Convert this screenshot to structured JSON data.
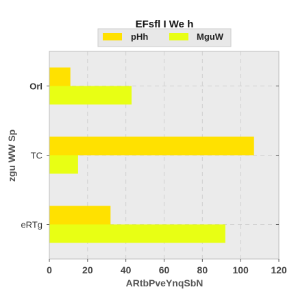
{
  "chart_data": {
    "type": "bar",
    "orientation": "horizontal",
    "title": "EFsfl I We h",
    "xlabel": "ARtbPveYnqSbN",
    "ylabel": "zgu WW Sp",
    "categories": [
      "Orl",
      "TC",
      "eRTg"
    ],
    "series": [
      {
        "name": "pHh",
        "values": [
          11,
          107,
          32
        ],
        "color": "#ffe100"
      },
      {
        "name": "MguW",
        "values": [
          43,
          15,
          92
        ],
        "color": "#e8ff14"
      }
    ],
    "xlim": [
      0,
      120
    ],
    "xticks": [
      "0",
      "20",
      "40",
      "60",
      "80",
      "100",
      "120"
    ],
    "grid": true,
    "legend_position": "top-center"
  }
}
